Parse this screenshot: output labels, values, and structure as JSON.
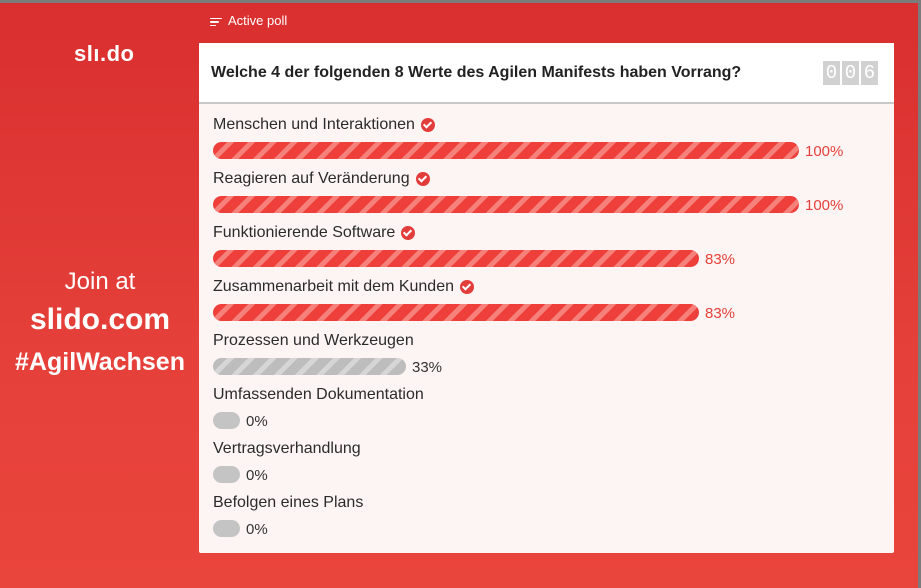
{
  "header": {
    "active_poll_label": "Active poll",
    "logo": "slı.do"
  },
  "join": {
    "line1": "Join at",
    "url": "slido.com",
    "hashtag": "#AgilWachsen"
  },
  "poll": {
    "question": "Welche 4 der folgenden 8 Werte des Agilen Manifests haben Vorrang?",
    "vote_count_digits": [
      "0",
      "0",
      "6"
    ],
    "options": [
      {
        "label": "Menschen und Interaktionen",
        "percent": 100,
        "percent_label": "100%",
        "correct": true
      },
      {
        "label": "Reagieren auf Veränderung",
        "percent": 100,
        "percent_label": "100%",
        "correct": true
      },
      {
        "label": "Funktionierende Software",
        "percent": 83,
        "percent_label": "83%",
        "correct": true
      },
      {
        "label": "Zusammenarbeit mit dem Kunden",
        "percent": 83,
        "percent_label": "83%",
        "correct": true
      },
      {
        "label": "Prozessen und Werkzeugen",
        "percent": 33,
        "percent_label": "33%",
        "correct": false
      },
      {
        "label": "Umfassenden Dokumentation",
        "percent": 0,
        "percent_label": "0%",
        "correct": false
      },
      {
        "label": "Vertragsverhandlung",
        "percent": 0,
        "percent_label": "0%",
        "correct": false
      },
      {
        "label": "Befolgen eines Plans",
        "percent": 0,
        "percent_label": "0%",
        "correct": false
      }
    ]
  },
  "colors": {
    "accent": "#e5403a",
    "background": "#d92f2f",
    "bar_gray": "#c4c4c4"
  }
}
